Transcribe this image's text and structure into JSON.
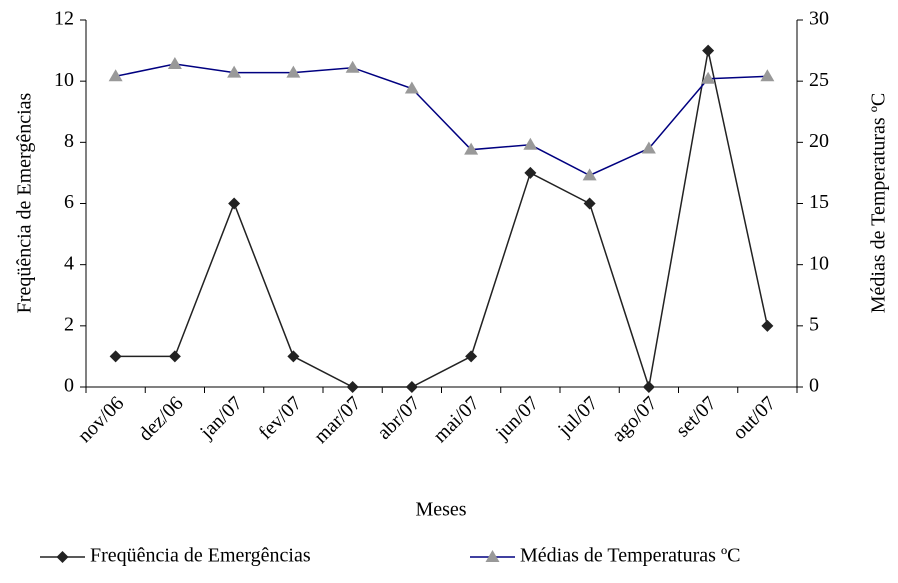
{
  "chart_data": {
    "type": "line",
    "categories": [
      "nov/06",
      "dez/06",
      "jan/07",
      "fev/07",
      "mar/07",
      "abr/07",
      "mai/07",
      "jun/07",
      "jul/07",
      "ago/07",
      "set/07",
      "out/07"
    ],
    "series": [
      {
        "name": "Freqüência de Emergências",
        "color": "#222222",
        "marker": "diamond",
        "marker_color": "#222222",
        "values": [
          1,
          1,
          6,
          1,
          0,
          0,
          1,
          7,
          6,
          0,
          11,
          2
        ]
      },
      {
        "name": "Médias de Temperaturas ºC",
        "color": "#000080",
        "marker": "triangle",
        "marker_color": "#999999",
        "axis": "y2",
        "values": [
          25.4,
          26.4,
          25.7,
          25.7,
          26.1,
          24.4,
          19.4,
          19.8,
          17.3,
          19.5,
          25.2,
          25.4
        ]
      }
    ],
    "x_label": "Meses",
    "y_label": "Freqüência de Emergências",
    "y2_label": "Médias de Temperaturas ºC",
    "ylim": [
      0,
      12
    ],
    "yticks": [
      0,
      2,
      4,
      6,
      8,
      10,
      12
    ],
    "y2lim": [
      0,
      30
    ],
    "y2ticks": [
      0,
      5,
      10,
      15,
      20,
      25,
      30
    ],
    "legend": "bottom"
  }
}
